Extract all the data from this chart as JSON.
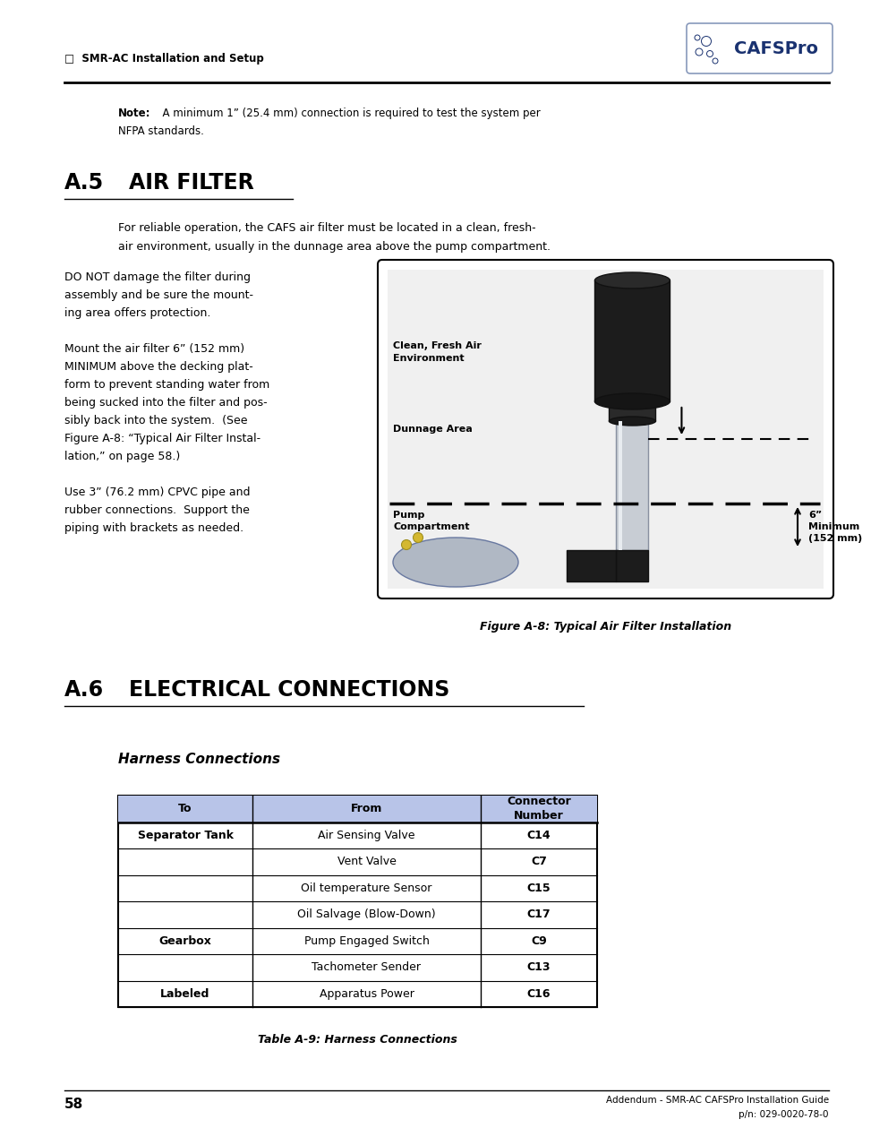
{
  "page_width": 9.54,
  "page_height": 12.35,
  "dpi": 100,
  "bg_color": "#ffffff",
  "header_text": "SMR-AC Installation and Setup",
  "header_bullet": "□",
  "header_color": "#000000",
  "logo_text": "CAFSPro",
  "logo_color": "#1a3270",
  "note_bold": "Note:",
  "note_line1": "  A minimum 1” (25.4 mm) connection is required to test the system per",
  "note_line2": "NFPA standards.",
  "section_a5_num": "A.5",
  "section_a5_title": "AIR FILTER",
  "section_a5_para1a": "For reliable operation, the CAFS air filter must be located in a clean, fresh-",
  "section_a5_para1b": "air environment, usually in the dunnage area above the pump compartment.",
  "section_a5_left_lines": [
    "DO NOT damage the filter during",
    "assembly and be sure the mount-",
    "ing area offers protection.",
    "",
    "Mount the air filter 6” (152 mm)",
    "MINIMUM above the decking plat-",
    "form to prevent standing water from",
    "being sucked into the filter and pos-",
    "sibly back into the system.  (See",
    "Figure A-8: “Typical Air Filter Instal-",
    "lation,” on page 58.)",
    "",
    "Use 3” (76.2 mm) CPVC pipe and",
    "rubber connections.  Support the",
    "piping with brackets as needed."
  ],
  "fig_caption": "Figure A-8: Typical Air Filter Installation",
  "fig_label_clean": "Clean, Fresh Air\nEnvironment",
  "fig_label_dunnage": "Dunnage Area",
  "fig_label_pump": "Pump\nCompartment",
  "fig_label_min": "6”\nMinimum\n(152 mm)",
  "section_a6_num": "A.6",
  "section_a6_title": "ELECTRICAL CONNECTIONS",
  "subsection_title": "Harness Connections",
  "table_header": [
    "To",
    "From",
    "Connector\nNumber"
  ],
  "table_header_bg": "#b8c4e8",
  "table_rows": [
    [
      "Separator Tank",
      "Air Sensing Valve",
      "C14"
    ],
    [
      "",
      "Vent Valve",
      "C7"
    ],
    [
      "",
      "Oil temperature Sensor",
      "C15"
    ],
    [
      "",
      "Oil Salvage (Blow-Down)",
      "C17"
    ],
    [
      "Gearbox",
      "Pump Engaged Switch",
      "C9"
    ],
    [
      "",
      "Tachometer Sender",
      "C13"
    ],
    [
      "Labeled",
      "Apparatus Power",
      "C16"
    ]
  ],
  "table_caption": "Table A-9: Harness Connections",
  "footer_page": "58",
  "footer_right1": "Addendum - SMR-AC CAFSPro Installation Guide",
  "footer_right2": "p/n: 029-0020-78-0",
  "dark_navy": "#1a3270",
  "logo_border": "#8899bb"
}
